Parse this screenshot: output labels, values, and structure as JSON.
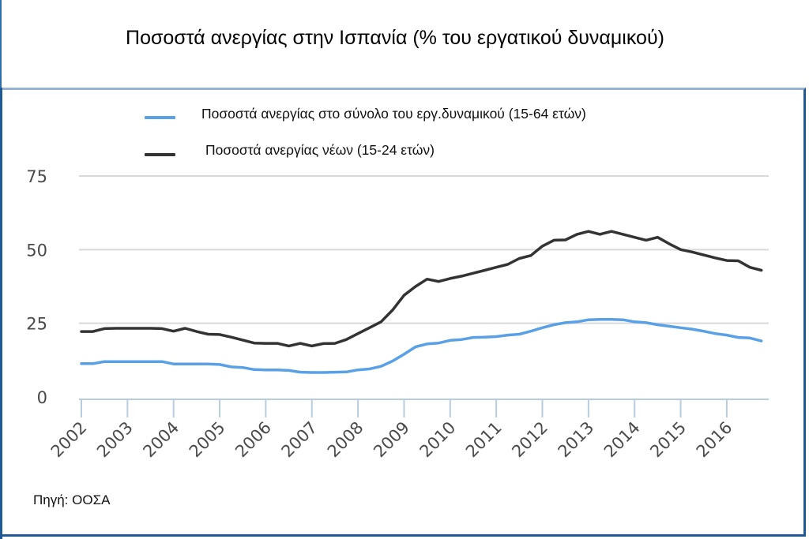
{
  "title": "Ποσοστά ανεργίας στην Ισπανία (% του εργατικού δυναμικού)",
  "source": "Πηγή: ΟΟΣΑ",
  "colors": {
    "total": "#5aa0e6",
    "youth": "#333333",
    "grid": "#d9d9d9",
    "axis": "#b8cce0",
    "tick_label": "#4a4a4a"
  },
  "legend": [
    {
      "label": "Ποσοστά ανεργίας στο σύνολο του εργ.δυναμικού (15-64 ετών)",
      "color": "#5aa0e6"
    },
    {
      "label": "Ποσοστά ανεργίας νέων (15-24 ετών)",
      "color": "#333333"
    }
  ],
  "chart_data": {
    "type": "line",
    "title": "Ποσοστά ανεργίας στην Ισπανία (% του εργατικού δυναμικού)",
    "xlabel": "",
    "ylabel": "",
    "ylim": [
      0,
      75
    ],
    "yticks": [
      0,
      25,
      50,
      75
    ],
    "grid": true,
    "legend_position": "top",
    "categories": [
      "2002",
      "2003",
      "2004",
      "2005",
      "2006",
      "2007",
      "2008",
      "2009",
      "2010",
      "2011",
      "2012",
      "2013",
      "2014",
      "2015",
      "2016"
    ],
    "x_frequency": "quarterly",
    "series": [
      {
        "name": "Ποσοστά ανεργίας στο σύνολο του εργ.δυναμικού (15-64 ετών)",
        "color": "#5aa0e6",
        "values": [
          11.3,
          11.3,
          12,
          12,
          12,
          12,
          12,
          12,
          11.2,
          11.2,
          11.2,
          11.2,
          11,
          10.2,
          10,
          9.3,
          9.2,
          9.2,
          9,
          8.4,
          8.3,
          8.3,
          8.4,
          8.5,
          9.2,
          9.5,
          10.4,
          12.2,
          14.5,
          17,
          18,
          18.3,
          19.2,
          19.5,
          20.2,
          20.3,
          20.5,
          21,
          21.3,
          22.3,
          23.5,
          24.5,
          25.2,
          25.5,
          26.2,
          26.3,
          26.3,
          26.2,
          25.5,
          25.2,
          24.5,
          24,
          23.5,
          23,
          22.3,
          21.5,
          21,
          20.2,
          20,
          19
        ]
      },
      {
        "name": "Ποσοστά ανεργίας νέων (15-24 ετών)",
        "color": "#333333",
        "values": [
          22.2,
          22.2,
          23.2,
          23.3,
          23.3,
          23.3,
          23.3,
          23.2,
          22.3,
          23.3,
          22.2,
          21.3,
          21.2,
          20.3,
          19.3,
          18.3,
          18.2,
          18.2,
          17.3,
          18.2,
          17.3,
          18.1,
          18.2,
          19.5,
          21.5,
          23.5,
          25.5,
          29.5,
          34.5,
          37.5,
          40,
          39.2,
          40.2,
          41,
          42,
          43,
          44,
          45,
          47,
          48,
          51.2,
          53.2,
          53.3,
          55.2,
          56.2,
          55.2,
          56.2,
          55.2,
          54.2,
          53.2,
          54.2,
          52,
          50,
          49.2,
          48.2,
          47.2,
          46.3,
          46.2,
          44,
          43
        ]
      }
    ]
  }
}
